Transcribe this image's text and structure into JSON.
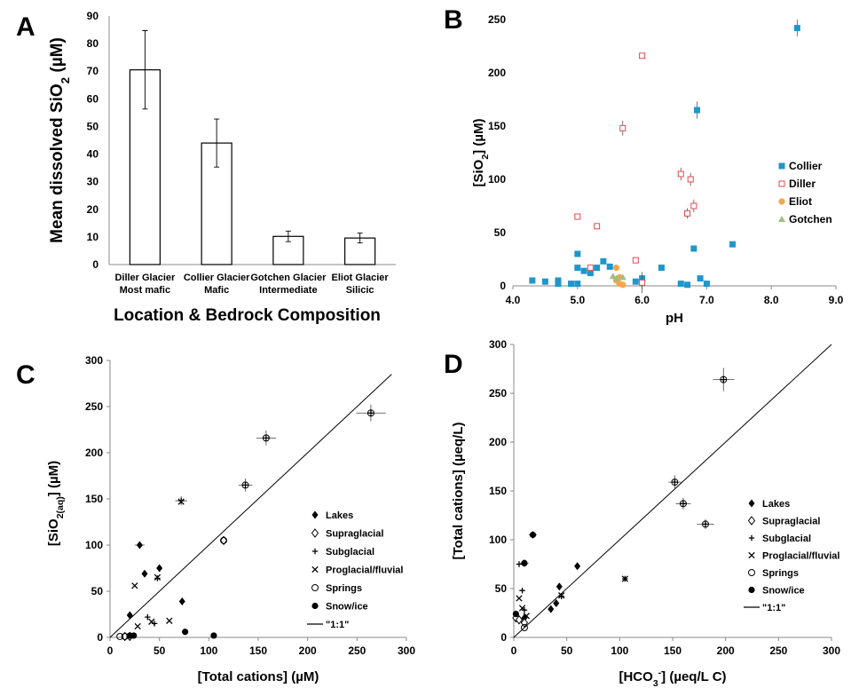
{
  "chart_data": [
    {
      "panel": "A",
      "type": "bar",
      "ylabel": "Mean dissolved SiO2 (µM)",
      "ylabel_main": "Mean dissolved SiO",
      "ylabel_sub": "2",
      "ylabel_tail": " (µM)",
      "xlabel": "Location & Bedrock Composition",
      "ylim": [
        0,
        90
      ],
      "yticks": [
        "0",
        "10",
        "20",
        "30",
        "40",
        "50",
        "60",
        "70",
        "80",
        "90"
      ],
      "categories": [
        {
          "line1": "Diller Glacier",
          "line2": "Most mafic"
        },
        {
          "line1": "Collier Glacier",
          "line2": "Mafic"
        },
        {
          "line1": "Gotchen Glacier",
          "line2": "Intermediate"
        },
        {
          "line1": "Eliot Glacier",
          "line2": "Silicic"
        }
      ],
      "values": [
        70.5,
        44,
        10.2,
        9.6
      ],
      "errors": [
        14.2,
        8.7,
        1.9,
        1.8
      ]
    },
    {
      "panel": "B",
      "type": "scatter",
      "xlabel": "pH",
      "ylabel": "[SiO2] (µM)",
      "ylabel_main": "[SiO",
      "ylabel_sub": "2",
      "ylabel_tail": "] (µM)",
      "xlim": [
        4.0,
        9.0
      ],
      "ylim": [
        0,
        250
      ],
      "xticks": [
        "4.0",
        "5.0",
        "6.0",
        "7.0",
        "8.0",
        "9.0"
      ],
      "yticks": [
        "0",
        "50",
        "100",
        "150",
        "200",
        "250"
      ],
      "legend_position": "right",
      "series": [
        {
          "name": "Collier",
          "color": "#1f96cc",
          "marker": "square-filled",
          "points": [
            [
              4.3,
              5
            ],
            [
              4.5,
              4
            ],
            [
              4.7,
              5
            ],
            [
              4.7,
              2
            ],
            [
              4.9,
              2
            ],
            [
              5.0,
              30
            ],
            [
              5.0,
              17
            ],
            [
              5.0,
              2
            ],
            [
              5.1,
              14
            ],
            [
              5.2,
              12
            ],
            [
              5.3,
              17
            ],
            [
              5.4,
              23
            ],
            [
              5.5,
              18
            ],
            [
              5.9,
              4
            ],
            [
              6.0,
              7
            ],
            [
              6.3,
              17
            ],
            [
              6.6,
              2
            ],
            [
              6.7,
              1
            ],
            [
              6.8,
              35
            ],
            [
              6.9,
              7
            ],
            [
              7.0,
              2
            ],
            [
              7.4,
              39
            ],
            [
              6.85,
              165
            ],
            [
              8.4,
              242
            ]
          ],
          "errors": [
            [
              6.85,
              8
            ],
            [
              8.4,
              8
            ]
          ]
        },
        {
          "name": "Diller",
          "color": "#e8474f",
          "marker": "square-open",
          "points": [
            [
              5.0,
              65
            ],
            [
              5.2,
              17
            ],
            [
              5.3,
              56
            ],
            [
              5.7,
              148
            ],
            [
              5.9,
              24
            ],
            [
              6.0,
              3
            ],
            [
              6.0,
              216
            ],
            [
              6.6,
              105
            ],
            [
              6.7,
              68
            ],
            [
              6.75,
              100
            ],
            [
              6.8,
              75
            ]
          ],
          "errors": [
            [
              5.7,
              7
            ],
            [
              6.0,
              10
            ],
            [
              6.6,
              6
            ],
            [
              6.75,
              6
            ],
            [
              6.8,
              6
            ],
            [
              6.7,
              5
            ]
          ]
        },
        {
          "name": "Eliot",
          "color": "#f7a54a",
          "marker": "circle-filled",
          "points": [
            [
              5.6,
              17
            ],
            [
              5.6,
              5
            ],
            [
              5.65,
              2
            ],
            [
              5.65,
              8
            ],
            [
              5.7,
              1
            ]
          ]
        },
        {
          "name": "Gotchen",
          "color": "#9fbf7d",
          "marker": "triangle-filled",
          "points": [
            [
              5.55,
              9
            ],
            [
              5.6,
              7
            ],
            [
              5.7,
              8
            ]
          ]
        }
      ]
    },
    {
      "panel": "C",
      "type": "scatter",
      "xlabel": "[Total cations] (µM)",
      "ylabel": "[SiO2(aq)] (µM)",
      "ylabel_main": "[SiO",
      "ylabel_sub": "2(aq)",
      "ylabel_tail": "] (µM)",
      "xlim": [
        0,
        300
      ],
      "ylim": [
        0,
        300
      ],
      "xticks": [
        "0",
        "50",
        "100",
        "150",
        "200",
        "250",
        "300"
      ],
      "yticks": [
        "0",
        "50",
        "100",
        "150",
        "200",
        "250",
        "300"
      ],
      "legend_position": "right",
      "series": [
        {
          "name": "Lakes",
          "marker": "diamond-filled",
          "points": [
            [
              20,
              24
            ],
            [
              30,
              100
            ],
            [
              35,
              69
            ],
            [
              50,
              75
            ],
            [
              73,
              39
            ]
          ],
          "errors": [
            [
              30,
              5,
              4
            ]
          ]
        },
        {
          "name": "Supraglacial",
          "marker": "diamond-open",
          "points": [
            [
              15,
              1
            ],
            [
              20,
              1
            ],
            [
              115,
              105
            ]
          ]
        },
        {
          "name": "Subglacial",
          "marker": "plus",
          "points": [
            [
              38,
              22
            ],
            [
              45,
              15
            ],
            [
              48,
              64
            ],
            [
              72,
              148
            ],
            [
              137,
              165
            ],
            [
              158,
              216
            ],
            [
              264,
              243
            ]
          ],
          "errors": [
            [
              137,
              7,
              7
            ],
            [
              158,
              10,
              8
            ],
            [
              264,
              15,
              9
            ],
            [
              72,
              6,
              5
            ]
          ]
        },
        {
          "name": "Proglacial/fluvial",
          "marker": "x",
          "points": [
            [
              25,
              56
            ],
            [
              28,
              12
            ],
            [
              42,
              17
            ],
            [
              48,
              65
            ],
            [
              60,
              18
            ],
            [
              72,
              147
            ]
          ]
        },
        {
          "name": "Springs",
          "marker": "circle-open",
          "points": [
            [
              10,
              1
            ],
            [
              15,
              1
            ],
            [
              115,
              105
            ],
            [
              137,
              165
            ],
            [
              158,
              216
            ],
            [
              264,
              243
            ]
          ]
        },
        {
          "name": "Snow/ice",
          "marker": "circle-filled",
          "points": [
            [
              20,
              2
            ],
            [
              24,
              2
            ],
            [
              76,
              6
            ],
            [
              105,
              2
            ]
          ]
        },
        {
          "name": "\"1:1\"",
          "marker": "line",
          "points": [
            [
              0,
              0
            ],
            [
              285,
              285
            ]
          ]
        }
      ]
    },
    {
      "panel": "D",
      "type": "scatter",
      "xlabel": "[HCO3-] (µeq/L C)",
      "xlabel_main": "[HCO",
      "xlabel_sub": "3",
      "xlabel_sup": "-",
      "xlabel_tail": "] (µeq/L C)",
      "ylabel": "[Total cations] (µeq/L)",
      "xlim": [
        0,
        300
      ],
      "ylim": [
        0,
        300
      ],
      "xticks": [
        "0",
        "50",
        "100",
        "150",
        "200",
        "250",
        "300"
      ],
      "yticks": [
        "0",
        "50",
        "100",
        "150",
        "200",
        "250",
        "300"
      ],
      "legend_position": "right",
      "series": [
        {
          "name": "Lakes",
          "marker": "diamond-filled",
          "points": [
            [
              10,
              20
            ],
            [
              35,
              29
            ],
            [
              40,
              35
            ],
            [
              43,
              52
            ],
            [
              60,
              73
            ]
          ]
        },
        {
          "name": "Supraglacial",
          "marker": "diamond-open",
          "points": [
            [
              2,
              20
            ],
            [
              5,
              18
            ],
            [
              10,
              15
            ]
          ]
        },
        {
          "name": "Subglacial",
          "marker": "plus",
          "points": [
            [
              5,
              75
            ],
            [
              8,
              48
            ],
            [
              10,
              28
            ],
            [
              45,
              42
            ],
            [
              105,
              60
            ],
            [
              152,
              159
            ],
            [
              160,
              137
            ],
            [
              181,
              116
            ],
            [
              198,
              264
            ]
          ],
          "errors": [
            [
              152,
              6,
              7
            ],
            [
              160,
              7,
              6
            ],
            [
              181,
              8,
              5
            ],
            [
              198,
              10,
              12
            ]
          ]
        },
        {
          "name": "Proglacial/fluvial",
          "marker": "x",
          "points": [
            [
              5,
              40
            ],
            [
              8,
              30
            ],
            [
              12,
              22
            ],
            [
              45,
              43
            ],
            [
              105,
              60
            ]
          ]
        },
        {
          "name": "Springs",
          "marker": "circle-open",
          "points": [
            [
              10,
              10
            ],
            [
              152,
              159
            ],
            [
              160,
              137
            ],
            [
              181,
              116
            ],
            [
              198,
              264
            ]
          ]
        },
        {
          "name": "Snow/ice",
          "marker": "circle-filled",
          "points": [
            [
              2,
              24
            ],
            [
              10,
              76
            ],
            [
              18,
              105
            ]
          ],
          "errors": [
            [
              18,
              4,
              4
            ],
            [
              10,
              4,
              4
            ]
          ]
        },
        {
          "name": "\"1:1\"",
          "marker": "line",
          "points": [
            [
              0,
              0
            ],
            [
              300,
              300
            ]
          ]
        }
      ]
    }
  ]
}
